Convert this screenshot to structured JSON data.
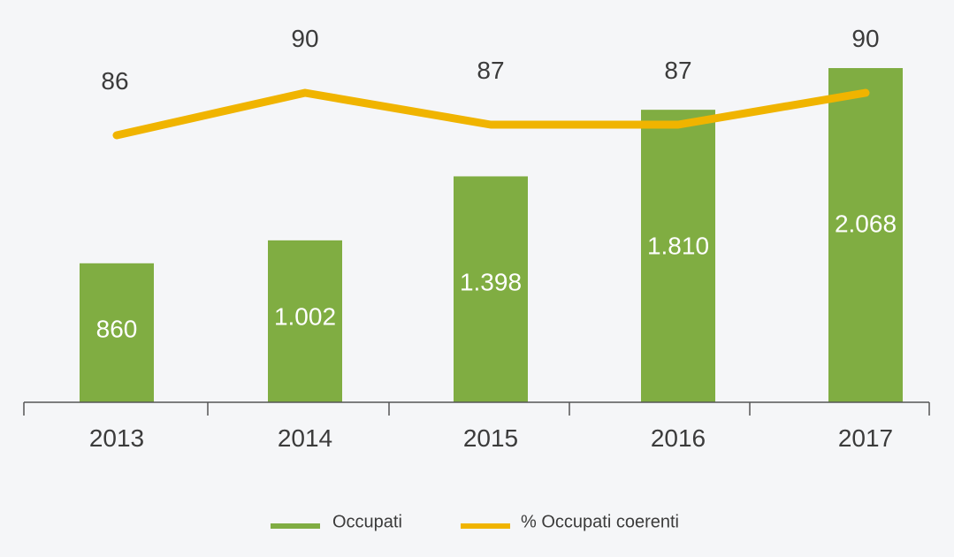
{
  "chart_data": {
    "type": "bar",
    "categories": [
      "2013",
      "2014",
      "2015",
      "2016",
      "2017"
    ],
    "series": [
      {
        "name": "Occupati",
        "type": "bar",
        "values": [
          860,
          1002,
          1398,
          1810,
          2068
        ],
        "labels": [
          "860",
          "1.002",
          "1.398",
          "1.810",
          "2.068"
        ],
        "color": "#80ad42"
      },
      {
        "name": "% Occupati coerenti",
        "type": "line",
        "values": [
          86,
          90,
          87,
          87,
          90
        ],
        "labels": [
          "86",
          "90",
          "87",
          "87",
          "90"
        ],
        "color": "#f0b400"
      }
    ],
    "title": "",
    "xlabel": "",
    "ylabel": "",
    "ylim_bar": [
      0,
      2100
    ],
    "ylim_line": [
      0,
      100
    ],
    "grid": false,
    "legend_position": "bottom-center"
  },
  "colors": {
    "background": "#f5f6f8",
    "axis": "#555555",
    "text": "#3b3b3b",
    "bar_label": "#ffffff"
  }
}
